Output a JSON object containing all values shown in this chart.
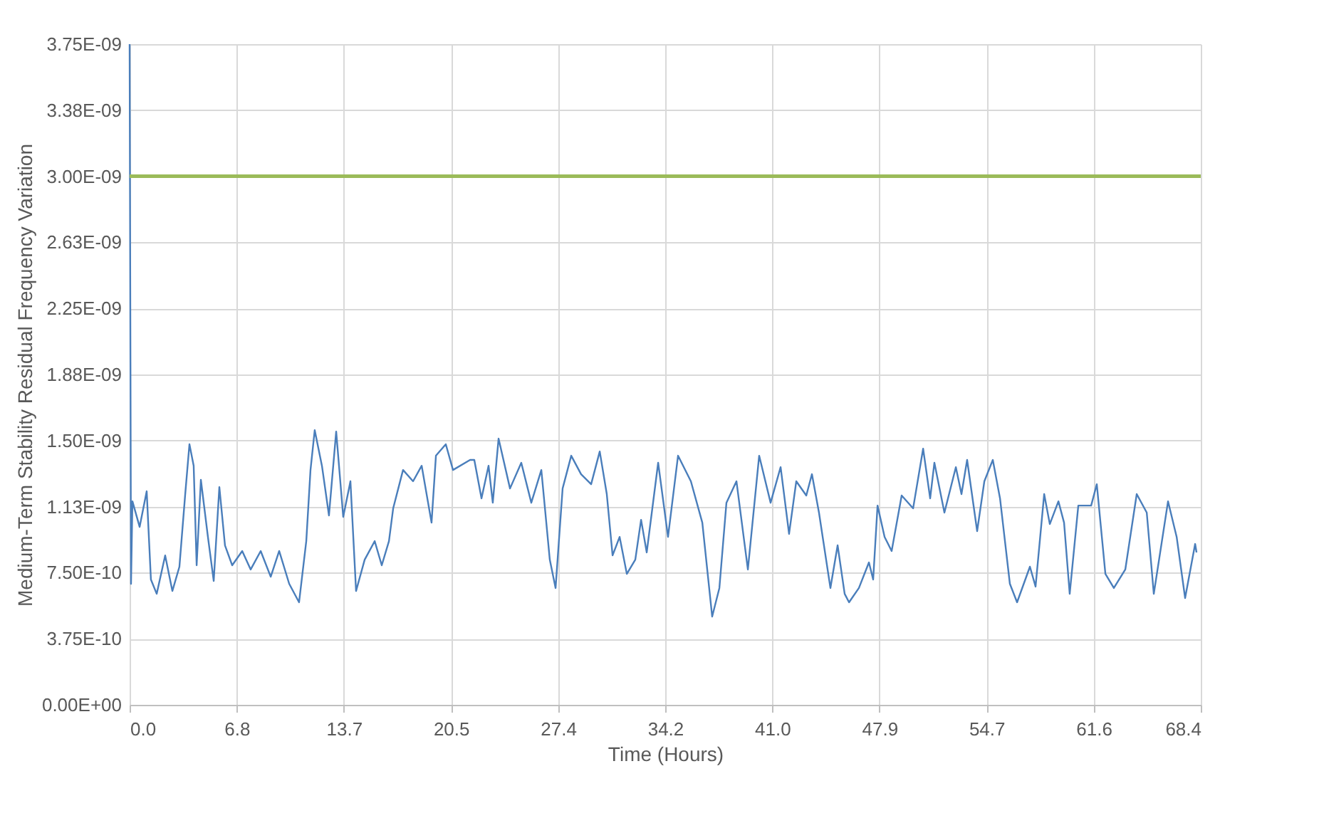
{
  "chart_data": {
    "type": "line",
    "xlabel": "Time (Hours)",
    "ylabel": "Medium-Term Stability Residual Frequency Variation",
    "x": [
      0,
      0.09,
      0.18,
      0.64,
      1.09,
      1.36,
      1.73,
      2.27,
      2.73,
      3.18,
      3.55,
      3.82,
      4.09,
      4.28,
      4.55,
      5.0,
      5.37,
      5.73,
      6.09,
      6.55,
      7.19,
      7.73,
      8.37,
      9.01,
      9.55,
      10.19,
      10.82,
      11.28,
      11.55,
      11.82,
      12.28,
      12.73,
      13.19,
      13.64,
      14.1,
      14.46,
      15.01,
      15.65,
      16.1,
      16.56,
      16.83,
      17.46,
      18.1,
      18.65,
      19.28,
      19.56,
      20.19,
      20.65,
      21.74,
      22.01,
      22.47,
      22.92,
      23.19,
      23.56,
      24.29,
      25.01,
      25.65,
      26.29,
      26.83,
      27.2,
      27.65,
      28.2,
      28.83,
      29.47,
      30.02,
      30.47,
      30.84,
      31.29,
      31.75,
      32.29,
      32.66,
      33.02,
      33.75,
      34.38,
      35.02,
      35.84,
      36.57,
      37.2,
      37.66,
      38.11,
      38.75,
      39.48,
      40.2,
      40.93,
      41.57,
      42.11,
      42.57,
      43.21,
      43.57,
      44.02,
      44.75,
      45.21,
      45.66,
      45.94,
      46.57,
      47.21,
      47.48,
      47.76,
      48.21,
      48.66,
      49.3,
      50.03,
      50.67,
      51.12,
      51.39,
      52.03,
      52.76,
      53.12,
      53.48,
      54.12,
      54.58,
      55.12,
      55.58,
      56.21,
      56.67,
      57.49,
      57.85,
      58.4,
      58.76,
      59.31,
      59.67,
      60.03,
      60.58,
      61.4,
      61.76,
      62.31,
      62.85,
      63.58,
      64.31,
      64.95,
      65.4,
      66.31,
      66.86,
      67.4,
      68.04,
      68.13
    ],
    "series": [
      {
        "color": "#4a7ebb",
        "values": [
          3.75e-09,
          6.87e-10,
          1.155e-09,
          1.01e-09,
          1.212e-09,
          7.11e-10,
          6.3e-10,
          8.48e-10,
          6.46e-10,
          7.84e-10,
          1.196e-09,
          1.479e-09,
          1.357e-09,
          7.92e-10,
          1.277e-09,
          9.53e-10,
          7.03e-10,
          1.236e-09,
          9.05e-10,
          7.92e-10,
          8.73e-10,
          7.68e-10,
          8.73e-10,
          7.27e-10,
          8.73e-10,
          6.87e-10,
          5.82e-10,
          9.29e-10,
          1.333e-09,
          1.559e-09,
          1.357e-09,
          1.075e-09,
          1.551e-09,
          1.067e-09,
          1.269e-09,
          6.46e-10,
          8.24e-10,
          9.29e-10,
          7.92e-10,
          9.29e-10,
          1.115e-09,
          1.333e-09,
          1.269e-09,
          1.357e-09,
          1.034e-09,
          1.414e-09,
          1.479e-09,
          1.333e-09,
          1.39e-09,
          1.39e-09,
          1.172e-09,
          1.357e-09,
          1.147e-09,
          1.511e-09,
          1.228e-09,
          1.374e-09,
          1.147e-09,
          1.333e-09,
          8.24e-10,
          6.63e-10,
          1.228e-09,
          1.414e-09,
          1.309e-09,
          1.252e-09,
          1.438e-09,
          1.196e-09,
          8.48e-10,
          9.53e-10,
          7.43e-10,
          8.24e-10,
          1.05e-09,
          8.65e-10,
          1.374e-09,
          9.53e-10,
          1.414e-09,
          1.269e-09,
          1.034e-09,
          5.01e-10,
          6.63e-10,
          1.147e-09,
          1.269e-09,
          7.68e-10,
          1.414e-09,
          1.147e-09,
          1.349e-09,
          9.7e-10,
          1.269e-09,
          1.188e-09,
          1.309e-09,
          1.091e-09,
          6.63e-10,
          9.05e-10,
          6.3e-10,
          5.82e-10,
          6.63e-10,
          8.08e-10,
          7.11e-10,
          1.131e-09,
          9.53e-10,
          8.73e-10,
          1.188e-09,
          1.115e-09,
          1.454e-09,
          1.172e-09,
          1.374e-09,
          1.091e-09,
          1.349e-09,
          1.196e-09,
          1.39e-09,
          9.86e-10,
          1.269e-09,
          1.39e-09,
          1.172e-09,
          6.87e-10,
          5.82e-10,
          7.84e-10,
          6.71e-10,
          1.196e-09,
          1.026e-09,
          1.155e-09,
          1.034e-09,
          6.3e-10,
          1.131e-09,
          1.131e-09,
          1.252e-09,
          7.43e-10,
          6.63e-10,
          7.68e-10,
          1.196e-09,
          1.091e-09,
          6.3e-10,
          1.155e-09,
          9.53e-10,
          6.06e-10,
          9.13e-10,
          8.65e-10
        ]
      }
    ],
    "ref_lines": [
      {
        "axis": "y",
        "value": 3e-09,
        "color": "#9bbb59"
      }
    ],
    "xlim": [
      0,
      68.4
    ],
    "xticks": [
      {
        "value": 0,
        "label": "0.0"
      },
      {
        "value": 6.84,
        "label": "6.8"
      },
      {
        "value": 13.68,
        "label": "13.7"
      },
      {
        "value": 20.52,
        "label": "20.5"
      },
      {
        "value": 27.36,
        "label": "27.4"
      },
      {
        "value": 34.2,
        "label": "34.2"
      },
      {
        "value": 41.04,
        "label": "41.0"
      },
      {
        "value": 47.88,
        "label": "47.9"
      },
      {
        "value": 54.72,
        "label": "54.7"
      },
      {
        "value": 61.56,
        "label": "61.6"
      },
      {
        "value": 68.4,
        "label": "68.4"
      }
    ],
    "ylim": [
      0,
      3.75e-09
    ],
    "yticks": [
      {
        "value": 0,
        "label": "0.00E+00"
      },
      {
        "value": 3.75e-10,
        "label": "3.75E-10"
      },
      {
        "value": 7.5e-10,
        "label": "7.50E-10"
      },
      {
        "value": 1.125e-09,
        "label": "1.13E-09"
      },
      {
        "value": 1.5e-09,
        "label": "1.50E-09"
      },
      {
        "value": 1.875e-09,
        "label": "1.88E-09"
      },
      {
        "value": 2.25e-09,
        "label": "2.25E-09"
      },
      {
        "value": 2.625e-09,
        "label": "2.63E-09"
      },
      {
        "value": 3e-09,
        "label": "3.00E-09"
      },
      {
        "value": 3.375e-09,
        "label": "3.38E-09"
      },
      {
        "value": 3.75e-09,
        "label": "3.75E-09"
      }
    ],
    "grid": true,
    "legend": false
  }
}
